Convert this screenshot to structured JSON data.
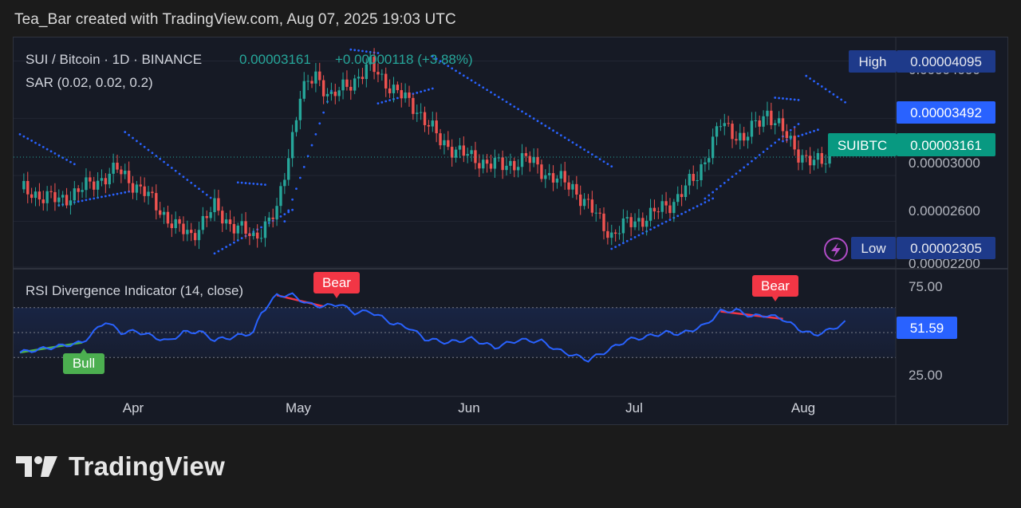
{
  "header": {
    "caption": "Tea_Bar created with TradingView.com, Aug 07, 2025 19:03 UTC"
  },
  "legend": {
    "symbol": "SUI / Bitcoin · 1D · BINANCE",
    "last_value": "0.00003161",
    "change": "+0.00000118 (+3.88%)",
    "sar_label": "SAR (0.02, 0.02, 0.2)",
    "rsi_label": "RSI Divergence Indicator (14, close)"
  },
  "price_scale": {
    "ticks": [
      "0.00004000",
      "0.00003000",
      "0.00002600",
      "0.00002200"
    ],
    "high_label": "High",
    "high_value": "0.00004095",
    "sar_value": "0.00003492",
    "symbol_label": "SUIBTC",
    "last_value": "0.00003161",
    "low_label": "Low",
    "low_value": "0.00002305"
  },
  "rsi_scale": {
    "ticks": [
      "75.00",
      "25.00"
    ],
    "current": "51.59"
  },
  "time_axis": {
    "labels": [
      "Apr",
      "May",
      "Jun",
      "Jul",
      "Aug"
    ]
  },
  "labels": {
    "bull": "Bull",
    "bear1": "Bear",
    "bear2": "Bear"
  },
  "footer": {
    "wordmark": "TradingView"
  },
  "colors": {
    "up": "#26a69a",
    "down": "#ef5350",
    "sar": "#2962ff",
    "rsi": "#2962ff",
    "bull": "#4caf50",
    "bear": "#f23645",
    "panel": "#161a25"
  },
  "chart_data": {
    "type": "candlestick",
    "title": "SUI / Bitcoin · 1D · BINANCE",
    "price_range": [
      2.2e-05,
      4.15e-05
    ],
    "high": 4.095e-05,
    "low": 2.305e-05,
    "last": 3.161e-05,
    "price_waypoints": [
      [
        0,
        28.8
      ],
      [
        10,
        27.8
      ],
      [
        18,
        29.2
      ],
      [
        25,
        30.5
      ],
      [
        32,
        28.5
      ],
      [
        40,
        25.5
      ],
      [
        44,
        24.8
      ],
      [
        50,
        27.2
      ],
      [
        54,
        25.8
      ],
      [
        60,
        24.6
      ],
      [
        66,
        26.8
      ],
      [
        72,
        37.0
      ],
      [
        76,
        38.8
      ],
      [
        80,
        36.8
      ],
      [
        86,
        38.4
      ],
      [
        90,
        39.6
      ],
      [
        96,
        37.5
      ],
      [
        102,
        35.8
      ],
      [
        108,
        33.0
      ],
      [
        116,
        31.5
      ],
      [
        124,
        30.8
      ],
      [
        130,
        31.5
      ],
      [
        136,
        30.0
      ],
      [
        142,
        29.0
      ],
      [
        148,
        26.5
      ],
      [
        152,
        24.8
      ],
      [
        156,
        25.8
      ],
      [
        162,
        26.5
      ],
      [
        168,
        27.8
      ],
      [
        174,
        30.0
      ],
      [
        180,
        34.5
      ],
      [
        186,
        33.2
      ],
      [
        192,
        35.6
      ],
      [
        196,
        33.8
      ],
      [
        200,
        32.0
      ],
      [
        204,
        31.0
      ],
      [
        208,
        31.6
      ]
    ],
    "sar_segments": [
      [
        [
          0,
          33.6
        ],
        [
          14,
          31.0
        ]
      ],
      [
        [
          10,
          27.4
        ],
        [
          28,
          28.6
        ]
      ],
      [
        [
          27,
          33.8
        ],
        [
          50,
          27.8
        ]
      ],
      [
        [
          50,
          23.2
        ],
        [
          70,
          27.0
        ]
      ],
      [
        [
          56,
          29.4
        ],
        [
          63,
          29.2
        ]
      ],
      [
        [
          68,
          26.0
        ],
        [
          80,
          37.4
        ]
      ],
      [
        [
          85,
          41.0
        ],
        [
          92,
          40.7
        ]
      ],
      [
        [
          92,
          36.3
        ],
        [
          106,
          37.6
        ]
      ],
      [
        [
          106,
          40.4
        ],
        [
          152,
          30.8
        ]
      ],
      [
        [
          152,
          23.6
        ],
        [
          178,
          28.0
        ]
      ],
      [
        [
          176,
          28.0
        ],
        [
          200,
          34.5
        ]
      ],
      [
        [
          194,
          36.8
        ],
        [
          200,
          36.6
        ]
      ],
      [
        [
          196,
          33.0
        ],
        [
          205,
          34.0
        ]
      ],
      [
        [
          202,
          38.7
        ],
        [
          212,
          36.4
        ]
      ]
    ],
    "rsi": {
      "range": [
        0,
        100
      ],
      "levels": [
        70,
        50,
        30
      ],
      "waypoints": [
        [
          0,
          34
        ],
        [
          8,
          38
        ],
        [
          16,
          42
        ],
        [
          22,
          59
        ],
        [
          26,
          50
        ],
        [
          30,
          51
        ],
        [
          34,
          47
        ],
        [
          38,
          43
        ],
        [
          42,
          50
        ],
        [
          46,
          51
        ],
        [
          50,
          44
        ],
        [
          54,
          46
        ],
        [
          60,
          50
        ],
        [
          62,
          66
        ],
        [
          66,
          80
        ],
        [
          70,
          80
        ],
        [
          74,
          73
        ],
        [
          78,
          71
        ],
        [
          82,
          73
        ],
        [
          86,
          66
        ],
        [
          90,
          67
        ],
        [
          96,
          57
        ],
        [
          100,
          54
        ],
        [
          104,
          45
        ],
        [
          110,
          42
        ],
        [
          116,
          45
        ],
        [
          122,
          38
        ],
        [
          128,
          44
        ],
        [
          134,
          43
        ],
        [
          138,
          36
        ],
        [
          142,
          32
        ],
        [
          146,
          28
        ],
        [
          150,
          34
        ],
        [
          156,
          44
        ],
        [
          160,
          46
        ],
        [
          166,
          50
        ],
        [
          170,
          49
        ],
        [
          176,
          56
        ],
        [
          180,
          67
        ],
        [
          184,
          68
        ],
        [
          188,
          63
        ],
        [
          192,
          64
        ],
        [
          196,
          61
        ],
        [
          200,
          53
        ],
        [
          204,
          48
        ],
        [
          208,
          52
        ],
        [
          212,
          58
        ]
      ]
    },
    "divergences": [
      {
        "type": "bull",
        "from": [
          0,
          34
        ],
        "to": [
          16,
          42
        ]
      },
      {
        "type": "bear",
        "from": [
          66,
          80
        ],
        "to": [
          78,
          71
        ]
      },
      {
        "type": "bear",
        "from": [
          180,
          67
        ],
        "to": [
          196,
          61
        ]
      }
    ]
  }
}
